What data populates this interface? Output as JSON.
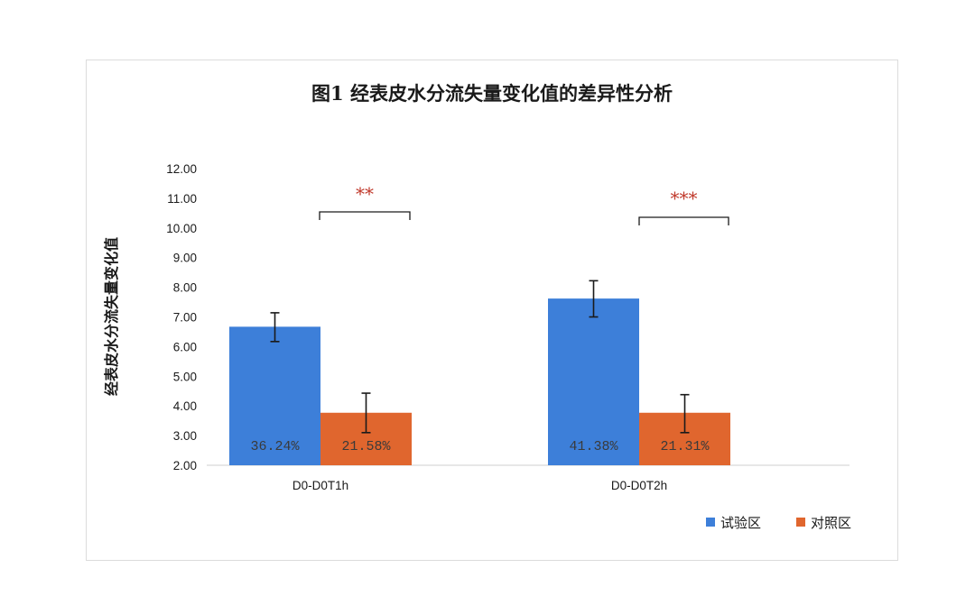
{
  "chart_data": {
    "type": "bar",
    "title": "图1  经表皮水分流失量变化值的差异性分析",
    "ylabel": "经表皮水分流失量变化值",
    "xlabel": "",
    "ylim": [
      2.0,
      12.0
    ],
    "yticks": [
      "2.00",
      "3.00",
      "4.00",
      "5.00",
      "6.00",
      "7.00",
      "8.00",
      "9.00",
      "10.00",
      "11.00",
      "12.00"
    ],
    "categories": [
      "D0-D0T1h",
      "D0-D0T2h"
    ],
    "series": [
      {
        "name": "试验区",
        "color": "#3d7fd9",
        "values": [
          6.67,
          7.62
        ],
        "error_low": [
          6.17,
          7.0
        ],
        "error_high": [
          7.14,
          8.22
        ],
        "labels": [
          "36.24%",
          "41.38%"
        ]
      },
      {
        "name": "对照区",
        "color": "#e0662e",
        "values": [
          3.77,
          3.77
        ],
        "error_low": [
          3.1,
          3.1
        ],
        "error_high": [
          4.43,
          4.38
        ],
        "labels": [
          "21.58%",
          "21.31%"
        ]
      }
    ],
    "significance": [
      "**",
      "***"
    ],
    "legend_position": "bottom-right",
    "grid": false
  }
}
